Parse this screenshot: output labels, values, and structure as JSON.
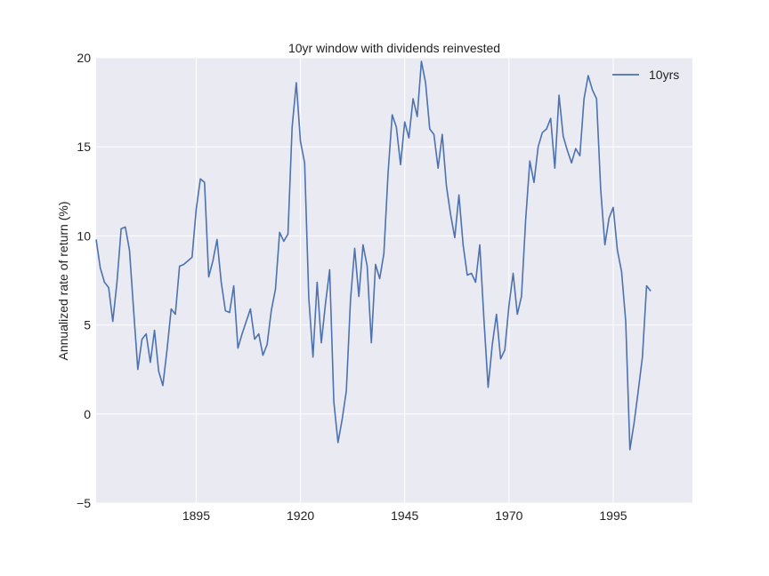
{
  "chart_data": {
    "type": "line",
    "title": "10yr window with dividends reinvested",
    "xlabel": "",
    "ylabel": "Annualized rate of return (%)",
    "xlim": [
      1871,
      2014
    ],
    "ylim": [
      -5,
      20
    ],
    "xticks": [
      1895,
      1920,
      1945,
      1970,
      1995
    ],
    "yticks": [
      -5,
      0,
      5,
      10,
      15,
      20
    ],
    "grid": true,
    "legend_position": "top-right",
    "series": [
      {
        "name": "10yrs",
        "color": "#4c72b0",
        "x": [
          1871,
          1872,
          1873,
          1874,
          1875,
          1876,
          1877,
          1878,
          1879,
          1880,
          1881,
          1882,
          1883,
          1884,
          1885,
          1886,
          1887,
          1888,
          1889,
          1890,
          1891,
          1892,
          1893,
          1894,
          1895,
          1896,
          1897,
          1898,
          1899,
          1900,
          1901,
          1902,
          1903,
          1904,
          1905,
          1906,
          1907,
          1908,
          1909,
          1910,
          1911,
          1912,
          1913,
          1914,
          1915,
          1916,
          1917,
          1918,
          1919,
          1920,
          1921,
          1922,
          1923,
          1924,
          1925,
          1926,
          1927,
          1928,
          1929,
          1930,
          1931,
          1932,
          1933,
          1934,
          1935,
          1936,
          1937,
          1938,
          1939,
          1940,
          1941,
          1942,
          1943,
          1944,
          1945,
          1946,
          1947,
          1948,
          1949,
          1950,
          1951,
          1952,
          1953,
          1954,
          1955,
          1956,
          1957,
          1958,
          1959,
          1960,
          1961,
          1962,
          1963,
          1964,
          1965,
          1966,
          1967,
          1968,
          1969,
          1970,
          1971,
          1972,
          1973,
          1974,
          1975,
          1976,
          1977,
          1978,
          1979,
          1980,
          1981,
          1982,
          1983,
          1984,
          1985,
          1986,
          1987,
          1988,
          1989,
          1990,
          1991,
          1992,
          1993,
          1994,
          1995,
          1996,
          1997,
          1998,
          1999,
          2000,
          2001,
          2002,
          2003,
          2004
        ],
        "values": [
          9.8,
          8.2,
          7.4,
          7.1,
          5.2,
          7.4,
          10.4,
          10.5,
          9.2,
          5.8,
          2.5,
          4.2,
          4.5,
          2.9,
          4.7,
          2.4,
          1.6,
          3.6,
          5.9,
          5.6,
          8.3,
          8.4,
          8.6,
          8.8,
          11.5,
          13.2,
          13.0,
          7.7,
          8.6,
          9.8,
          7.4,
          5.8,
          5.7,
          7.2,
          3.7,
          4.5,
          5.2,
          5.9,
          4.2,
          4.5,
          3.3,
          3.9,
          5.8,
          7.0,
          10.2,
          9.7,
          10.1,
          16.1,
          18.6,
          15.3,
          14.1,
          6.5,
          3.2,
          7.4,
          4.0,
          6.2,
          8.1,
          0.7,
          -1.6,
          -0.3,
          1.3,
          6.4,
          9.3,
          6.6,
          9.5,
          8.3,
          4.0,
          8.4,
          7.6,
          9.0,
          13.5,
          16.8,
          16.1,
          14.0,
          16.4,
          15.5,
          17.7,
          16.7,
          19.8,
          18.6,
          16.0,
          15.7,
          13.8,
          15.7,
          12.8,
          11.2,
          9.9,
          12.3,
          9.5,
          7.8,
          7.9,
          7.4,
          9.5,
          5.3,
          1.5,
          3.9,
          5.6,
          3.1,
          3.6,
          6.1,
          7.9,
          5.6,
          6.6,
          10.9,
          14.2,
          13.0,
          15.0,
          15.8,
          16.0,
          16.6,
          13.8,
          17.9,
          15.6,
          14.8,
          14.1,
          14.9,
          14.5,
          17.7,
          19.0,
          18.2,
          17.7,
          12.6,
          9.5,
          11.0,
          11.6,
          9.2,
          8.0,
          5.2,
          -2.0,
          -0.5,
          1.3,
          3.2,
          7.2,
          6.9
        ]
      }
    ]
  }
}
